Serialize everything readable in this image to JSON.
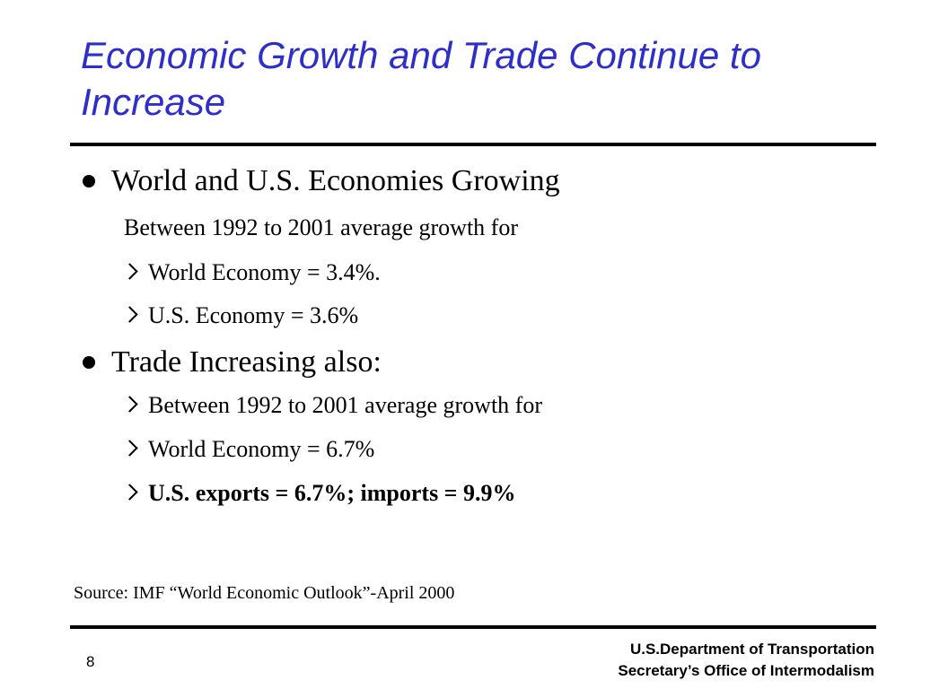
{
  "slide": {
    "title": "Economic Growth and Trade Continue to Increase",
    "page_number": "8"
  },
  "content": {
    "bullet1": "World and U.S. Economies Growing",
    "bullet1_intro": "Between 1992 to 2001 average growth for",
    "bullet1_items": [
      "World Economy = 3.4%.",
      "U.S. Economy = 3.6%"
    ],
    "bullet2": "Trade Increasing also:",
    "bullet2_items": [
      "Between 1992 to 2001 average growth for",
      "World Economy = 6.7%",
      "U.S. exports = 6.7%; imports =  9.9%"
    ]
  },
  "source": "Source:  IMF “World Economic Outlook”-April 2000",
  "footer": {
    "org_line1": "U.S.Department of Transportation",
    "org_line2": "Secretary’s Office of Intermodalism"
  },
  "colors": {
    "title": "#2e2ec8",
    "text": "#000000",
    "rule": "#000000"
  }
}
